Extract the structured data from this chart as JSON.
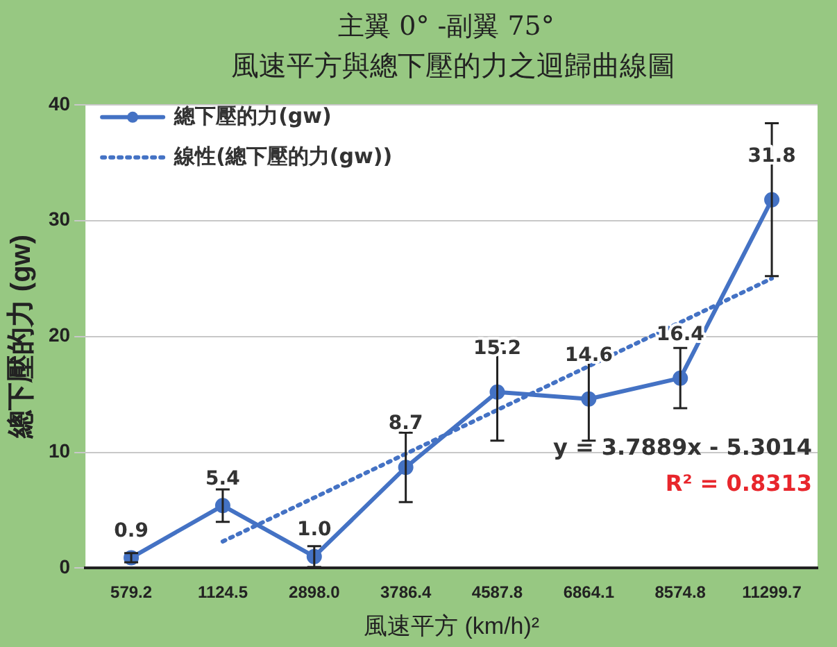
{
  "chart_data": {
    "type": "line",
    "title": "主翼 0°  -副翼 75°",
    "subtitle": "風速平方與總下壓的力之迴歸曲線圖",
    "xlabel": "風速平方 (km/h)²",
    "ylabel": "總下壓的力 (gw)",
    "categories": [
      "579.2",
      "1124.5",
      "2898.0",
      "3786.4",
      "4587.8",
      "6864.1",
      "8574.8",
      "11299.7"
    ],
    "series": [
      {
        "name": "總下壓的力(gw)",
        "color": "#4472c4",
        "marker": "circle",
        "line_style": "solid",
        "values": [
          0.9,
          5.4,
          1.0,
          8.7,
          15.2,
          14.6,
          16.4,
          31.8
        ],
        "value_labels": [
          "0.9",
          "5.4",
          "1.0",
          "8.7",
          "15.2",
          "14.6",
          "16.4",
          "31.8"
        ],
        "errors": [
          0.4,
          1.4,
          0.9,
          3.0,
          4.2,
          3.6,
          2.6,
          6.6
        ]
      },
      {
        "name": "線性(總下壓的力(gw))",
        "color": "#4472c4",
        "marker": "none",
        "line_style": "dotted",
        "x": [
          "1124.5",
          "11299.7"
        ],
        "values": [
          2.3,
          25.0
        ]
      }
    ],
    "ylim": [
      0,
      40
    ],
    "yticks": [
      0,
      10,
      20,
      30,
      40
    ],
    "grid": "y",
    "legend": "top left",
    "annotations": [
      "y = 3.7889x - 5.3014",
      "R² = 0.8313"
    ]
  }
}
